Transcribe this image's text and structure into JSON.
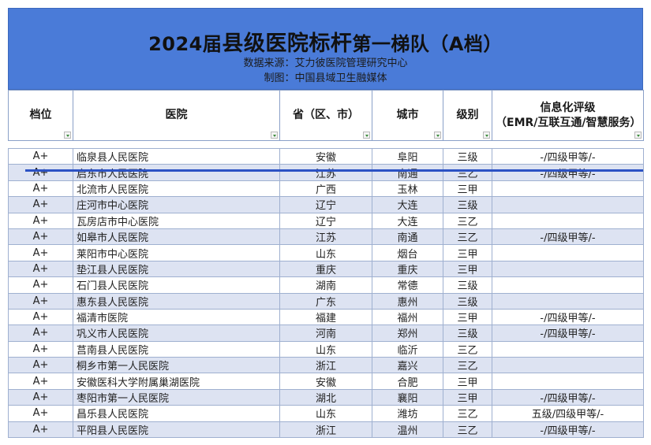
{
  "banner": {
    "title_prefix": "2024届",
    "title_mid": "县级医院标杆",
    "title_suffix": "第一梯队（A档）",
    "source_line": "数据来源：艾力彼医院管理研究中心",
    "made_line": "制图：中国县域卫生融媒体"
  },
  "table": {
    "headers": [
      "档位",
      "医院",
      "省（区、市）",
      "城市",
      "级别",
      "信息化评级\n（EMR/互联互通/智慧服务）"
    ],
    "rows": [
      [
        "A+",
        "临泉县人民医院",
        "安徽",
        "阜阳",
        "三级",
        "-/四级甲等/-"
      ],
      [
        "A+",
        "启东市人民医院",
        "江苏",
        "南通",
        "三乙",
        "-/四级甲等/-"
      ],
      [
        "A+",
        "北流市人民医院",
        "广西",
        "玉林",
        "三甲",
        ""
      ],
      [
        "A+",
        "庄河市中心医院",
        "辽宁",
        "大连",
        "三级",
        ""
      ],
      [
        "A+",
        "瓦房店市中心医院",
        "辽宁",
        "大连",
        "三乙",
        ""
      ],
      [
        "A+",
        "如皋市人民医院",
        "江苏",
        "南通",
        "三乙",
        "-/四级甲等/-"
      ],
      [
        "A+",
        "莱阳市中心医院",
        "山东",
        "烟台",
        "三甲",
        ""
      ],
      [
        "A+",
        "垫江县人民医院",
        "重庆",
        "重庆",
        "三甲",
        ""
      ],
      [
        "A+",
        "石门县人民医院",
        "湖南",
        "常德",
        "三级",
        ""
      ],
      [
        "A+",
        "惠东县人民医院",
        "广东",
        "惠州",
        "三级",
        ""
      ],
      [
        "A+",
        "福清市医院",
        "福建",
        "福州",
        "三甲",
        "-/四级甲等/-"
      ],
      [
        "A+",
        "巩义市人民医院",
        "河南",
        "郑州",
        "三级",
        "-/四级甲等/-"
      ],
      [
        "A+",
        "莒南县人民医院",
        "山东",
        "临沂",
        "三乙",
        ""
      ],
      [
        "A+",
        "桐乡市第一人民医院",
        "浙江",
        "嘉兴",
        "三乙",
        ""
      ],
      [
        "A+",
        "安徽医科大学附属巢湖医院",
        "安徽",
        "合肥",
        "三甲",
        ""
      ],
      [
        "A+",
        "枣阳市第一人民医院",
        "湖北",
        "襄阳",
        "三甲",
        "-/四级甲等/-"
      ],
      [
        "A+",
        "昌乐县人民医院",
        "山东",
        "潍坊",
        "三乙",
        "五级/四级甲等/-"
      ],
      [
        "A+",
        "平阳县人民医院",
        "浙江",
        "温州",
        "三乙",
        "-/四级甲等/-"
      ]
    ]
  },
  "colors": {
    "banner_bg": "#4a7bd8",
    "band_row": "#dde3f2",
    "highlight_rule": "#2c52c4"
  },
  "icons": {
    "filter": "filter-dropdown-icon"
  }
}
